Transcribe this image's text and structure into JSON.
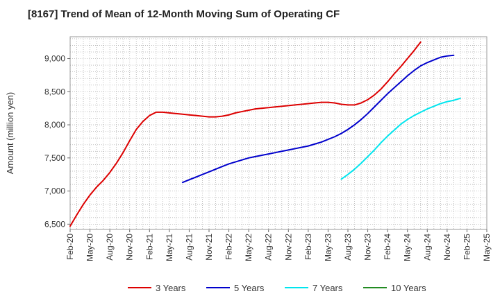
{
  "chart_data": {
    "type": "line",
    "title": "[8167]  Trend of Mean of 12-Month Moving Sum of Operating CF",
    "xlabel": "",
    "ylabel": "Amount (million yen)",
    "ylim": [
      6420,
      9330
    ],
    "yticks": [
      6500,
      7000,
      7500,
      8000,
      8500,
      9000
    ],
    "ytick_labels": [
      "6,500",
      "7,000",
      "7,500",
      "8,000",
      "8,500",
      "9,000"
    ],
    "xlim": [
      "Feb-20",
      "May-25"
    ],
    "xtick_labels": [
      "Feb-20",
      "May-20",
      "Aug-20",
      "Nov-20",
      "Feb-21",
      "May-21",
      "Aug-21",
      "Nov-21",
      "Feb-22",
      "May-22",
      "Aug-22",
      "Nov-22",
      "Feb-23",
      "May-23",
      "Aug-23",
      "Nov-23",
      "Feb-24",
      "May-24",
      "Aug-24",
      "Nov-24",
      "Feb-25",
      "May-25"
    ],
    "grid": true,
    "legend_position": "bottom",
    "series": [
      {
        "name": "3 Years",
        "color": "#dd0000",
        "start": "Feb-20",
        "values": [
          6470,
          6640,
          6800,
          6940,
          7060,
          7160,
          7280,
          7420,
          7580,
          7760,
          7930,
          8050,
          8140,
          8190,
          8190,
          8180,
          8170,
          8160,
          8150,
          8140,
          8130,
          8120,
          8120,
          8130,
          8150,
          8180,
          8200,
          8220,
          8240,
          8250,
          8260,
          8270,
          8280,
          8290,
          8300,
          8310,
          8320,
          8330,
          8340,
          8340,
          8330,
          8310,
          8300,
          8300,
          8330,
          8380,
          8450,
          8540,
          8650,
          8770,
          8880,
          9000,
          9120,
          9250
        ]
      },
      {
        "name": "5 Years",
        "color": "#0000cc",
        "start": "Jul-21",
        "values": [
          7130,
          7170,
          7210,
          7250,
          7290,
          7330,
          7370,
          7410,
          7440,
          7470,
          7500,
          7520,
          7540,
          7560,
          7580,
          7600,
          7620,
          7640,
          7660,
          7680,
          7710,
          7740,
          7780,
          7820,
          7870,
          7930,
          8000,
          8080,
          8170,
          8270,
          8370,
          8470,
          8560,
          8650,
          8740,
          8820,
          8890,
          8940,
          8980,
          9020,
          9040,
          9050
        ]
      },
      {
        "name": "7 Years",
        "color": "#00e5ee",
        "start": "Jul-23",
        "values": [
          7180,
          7250,
          7330,
          7420,
          7520,
          7620,
          7730,
          7830,
          7920,
          8010,
          8080,
          8140,
          8190,
          8240,
          8280,
          8320,
          8350,
          8370,
          8400
        ]
      },
      {
        "name": "10 Years",
        "color": "#228b22",
        "start": "Feb-20",
        "values": []
      }
    ]
  }
}
